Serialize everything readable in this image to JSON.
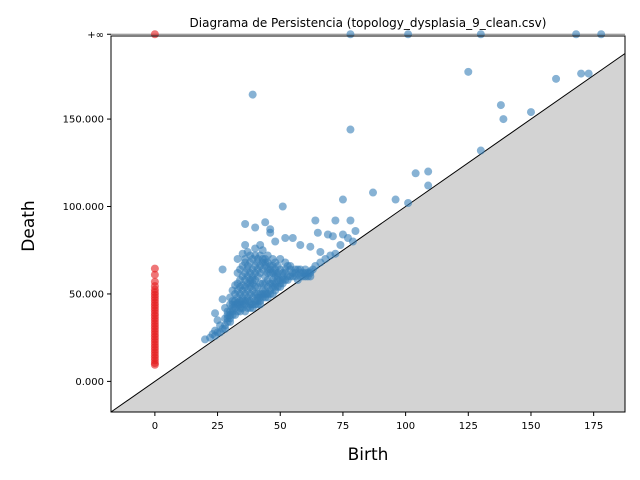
{
  "chart_data": {
    "type": "scatter",
    "title": "Diagrama de Persistencia (topology_dysplasia_9_clean.csv)",
    "xlabel": "Birth",
    "ylabel": "Death",
    "xlim": [
      -17.5,
      187.5
    ],
    "ylim": [
      -17.5,
      197.5
    ],
    "x_ticks": [
      0,
      25,
      50,
      75,
      100,
      125,
      150,
      175
    ],
    "y_ticks": [
      {
        "value": 0,
        "label": "0.000"
      },
      {
        "value": 50,
        "label": "50.000"
      },
      {
        "value": 100,
        "label": "100.000"
      },
      {
        "value": 150,
        "label": "150.000"
      },
      {
        "value": 198.5,
        "label": "+∞"
      }
    ],
    "infinity_value": 198.5,
    "diagonal": true,
    "series": [
      {
        "color": "#e41a1c",
        "points": [
          [
            0,
            198.5
          ],
          [
            0,
            64.5
          ],
          [
            0,
            61
          ],
          [
            0,
            57
          ],
          [
            0,
            54.5
          ],
          [
            0,
            52.5
          ],
          [
            0,
            51
          ],
          [
            0,
            49.5
          ],
          [
            0,
            48
          ],
          [
            0,
            46.5
          ],
          [
            0,
            45
          ],
          [
            0,
            43.5
          ],
          [
            0,
            42
          ],
          [
            0,
            40.5
          ],
          [
            0,
            39
          ],
          [
            0,
            37.5
          ],
          [
            0,
            36
          ],
          [
            0,
            34.5
          ],
          [
            0,
            33
          ],
          [
            0,
            31.5
          ],
          [
            0,
            30
          ],
          [
            0,
            28.5
          ],
          [
            0,
            27
          ],
          [
            0,
            25.5
          ],
          [
            0,
            24
          ],
          [
            0,
            22.5
          ],
          [
            0,
            21
          ],
          [
            0,
            19.5
          ],
          [
            0,
            18
          ],
          [
            0,
            16.5
          ],
          [
            0,
            15
          ],
          [
            0,
            13.5
          ],
          [
            0,
            12
          ],
          [
            0,
            10.5
          ],
          [
            0,
            9.5
          ]
        ]
      },
      {
        "color": "#377eb8",
        "points": [
          [
            78,
            198.5
          ],
          [
            101,
            198.5
          ],
          [
            130,
            198.5
          ],
          [
            168,
            198.5
          ],
          [
            178,
            198.5
          ],
          [
            39,
            164
          ],
          [
            125,
            177
          ],
          [
            160,
            173
          ],
          [
            170,
            176
          ],
          [
            173,
            176
          ],
          [
            138,
            158
          ],
          [
            139,
            150
          ],
          [
            150,
            154
          ],
          [
            78,
            144
          ],
          [
            130,
            132
          ],
          [
            109,
            120
          ],
          [
            104,
            119
          ],
          [
            109,
            112
          ],
          [
            87,
            108
          ],
          [
            96,
            104
          ],
          [
            101,
            102
          ],
          [
            75,
            104
          ],
          [
            51,
            100
          ],
          [
            64,
            92
          ],
          [
            72,
            92
          ],
          [
            78,
            92
          ],
          [
            36,
            90
          ],
          [
            44,
            91
          ],
          [
            40,
            88
          ],
          [
            46,
            87
          ],
          [
            46,
            85
          ],
          [
            65,
            85
          ],
          [
            69,
            84
          ],
          [
            71,
            83
          ],
          [
            75,
            84
          ],
          [
            77,
            82
          ],
          [
            80,
            86
          ],
          [
            79,
            80
          ],
          [
            74,
            78
          ],
          [
            52,
            82
          ],
          [
            55,
            82
          ],
          [
            58,
            78
          ],
          [
            62,
            77
          ],
          [
            48,
            80
          ],
          [
            42,
            78
          ],
          [
            36,
            78
          ],
          [
            66,
            74
          ],
          [
            70,
            72
          ],
          [
            72,
            73
          ],
          [
            27,
            64
          ],
          [
            20,
            24
          ],
          [
            22,
            25
          ],
          [
            24,
            26
          ],
          [
            24,
            39
          ],
          [
            25,
            35
          ],
          [
            26,
            32
          ],
          [
            27,
            47
          ],
          [
            28,
            42
          ],
          [
            29,
            38
          ],
          [
            30,
            48
          ],
          [
            31,
            52
          ],
          [
            32,
            55
          ],
          [
            33,
            62
          ],
          [
            33,
            70
          ],
          [
            34,
            64
          ],
          [
            35,
            73
          ],
          [
            36,
            68
          ],
          [
            37,
            74
          ],
          [
            38,
            72
          ],
          [
            40,
            76
          ],
          [
            41,
            70
          ],
          [
            43,
            75
          ],
          [
            44,
            70
          ],
          [
            45,
            72
          ],
          [
            47,
            70
          ],
          [
            48,
            68
          ],
          [
            50,
            70
          ],
          [
            52,
            68
          ],
          [
            54,
            66
          ],
          [
            56,
            64
          ],
          [
            58,
            62
          ],
          [
            60,
            64
          ],
          [
            62,
            63
          ],
          [
            64,
            66
          ],
          [
            66,
            68
          ],
          [
            68,
            70
          ],
          [
            30,
            34
          ],
          [
            31,
            40
          ],
          [
            32,
            44
          ],
          [
            33,
            48
          ],
          [
            34,
            50
          ],
          [
            35,
            55
          ],
          [
            36,
            58
          ],
          [
            37,
            60
          ],
          [
            38,
            62
          ],
          [
            39,
            64
          ],
          [
            40,
            66
          ],
          [
            41,
            60
          ],
          [
            42,
            62
          ],
          [
            43,
            64
          ],
          [
            44,
            60
          ],
          [
            45,
            62
          ],
          [
            46,
            64
          ],
          [
            47,
            58
          ],
          [
            48,
            60
          ],
          [
            49,
            62
          ],
          [
            50,
            58
          ],
          [
            51,
            60
          ],
          [
            52,
            62
          ],
          [
            53,
            58
          ],
          [
            54,
            60
          ],
          [
            55,
            62
          ],
          [
            56,
            60
          ],
          [
            57,
            58
          ],
          [
            58,
            60
          ],
          [
            59,
            62
          ],
          [
            60,
            60
          ],
          [
            61,
            62
          ],
          [
            62,
            62
          ],
          [
            63,
            64
          ],
          [
            30,
            36
          ],
          [
            31,
            38
          ],
          [
            32,
            38
          ],
          [
            33,
            40
          ],
          [
            34,
            42
          ],
          [
            35,
            44
          ],
          [
            36,
            46
          ],
          [
            37,
            48
          ],
          [
            38,
            50
          ],
          [
            39,
            52
          ],
          [
            40,
            54
          ],
          [
            41,
            54
          ],
          [
            42,
            56
          ],
          [
            43,
            56
          ],
          [
            44,
            56
          ],
          [
            45,
            58
          ],
          [
            46,
            56
          ],
          [
            47,
            56
          ],
          [
            48,
            56
          ],
          [
            49,
            58
          ],
          [
            50,
            56
          ],
          [
            51,
            56
          ],
          [
            52,
            58
          ],
          [
            53,
            60
          ],
          [
            33,
            45
          ],
          [
            34,
            46
          ],
          [
            35,
            48
          ],
          [
            36,
            50
          ],
          [
            37,
            52
          ],
          [
            38,
            54
          ],
          [
            39,
            56
          ],
          [
            40,
            58
          ],
          [
            41,
            50
          ],
          [
            42,
            50
          ],
          [
            43,
            52
          ],
          [
            44,
            52
          ],
          [
            45,
            54
          ],
          [
            46,
            52
          ],
          [
            47,
            54
          ],
          [
            48,
            54
          ],
          [
            49,
            54
          ],
          [
            50,
            54
          ],
          [
            51,
            58
          ],
          [
            34,
            40
          ],
          [
            35,
            42
          ],
          [
            36,
            44
          ],
          [
            37,
            46
          ],
          [
            38,
            46
          ],
          [
            39,
            48
          ],
          [
            40,
            50
          ],
          [
            41,
            48
          ],
          [
            42,
            48
          ],
          [
            43,
            50
          ],
          [
            44,
            48
          ],
          [
            45,
            50
          ],
          [
            46,
            50
          ],
          [
            47,
            50
          ],
          [
            48,
            52
          ],
          [
            36,
            40
          ],
          [
            37,
            42
          ],
          [
            38,
            44
          ],
          [
            39,
            44
          ],
          [
            40,
            46
          ],
          [
            41,
            46
          ],
          [
            42,
            46
          ],
          [
            43,
            48
          ],
          [
            44,
            50
          ],
          [
            45,
            48
          ],
          [
            38,
            42
          ],
          [
            39,
            42
          ],
          [
            40,
            44
          ],
          [
            41,
            44
          ],
          [
            42,
            44
          ],
          [
            35,
            66
          ],
          [
            36,
            70
          ],
          [
            37,
            66
          ],
          [
            38,
            68
          ],
          [
            39,
            70
          ],
          [
            40,
            72
          ],
          [
            41,
            68
          ],
          [
            42,
            72
          ],
          [
            43,
            70
          ],
          [
            44,
            68
          ],
          [
            45,
            68
          ],
          [
            46,
            66
          ],
          [
            47,
            66
          ],
          [
            48,
            64
          ],
          [
            49,
            66
          ],
          [
            50,
            64
          ],
          [
            51,
            62
          ],
          [
            52,
            64
          ],
          [
            53,
            66
          ],
          [
            54,
            64
          ],
          [
            55,
            60
          ],
          [
            56,
            62
          ],
          [
            57,
            64
          ],
          [
            58,
            64
          ],
          [
            59,
            60
          ],
          [
            60,
            62
          ],
          [
            61,
            60
          ],
          [
            62,
            60
          ],
          [
            33,
            56
          ],
          [
            34,
            58
          ],
          [
            35,
            60
          ],
          [
            36,
            62
          ],
          [
            37,
            64
          ],
          [
            38,
            58
          ],
          [
            39,
            60
          ],
          [
            40,
            62
          ],
          [
            41,
            64
          ],
          [
            42,
            66
          ],
          [
            43,
            68
          ],
          [
            44,
            66
          ],
          [
            45,
            64
          ],
          [
            46,
            62
          ],
          [
            47,
            62
          ],
          [
            48,
            62
          ],
          [
            49,
            60
          ],
          [
            31,
            46
          ],
          [
            32,
            50
          ],
          [
            33,
            52
          ],
          [
            34,
            54
          ],
          [
            35,
            52
          ],
          [
            36,
            54
          ],
          [
            37,
            56
          ],
          [
            38,
            56
          ],
          [
            39,
            58
          ],
          [
            29,
            34
          ],
          [
            30,
            40
          ],
          [
            31,
            44
          ],
          [
            32,
            46
          ],
          [
            33,
            44
          ],
          [
            34,
            44
          ],
          [
            35,
            46
          ],
          [
            28,
            32
          ],
          [
            29,
            36
          ],
          [
            30,
            38
          ],
          [
            31,
            42
          ],
          [
            32,
            42
          ],
          [
            28,
            36
          ],
          [
            29,
            40
          ],
          [
            30,
            44
          ],
          [
            27,
            30
          ],
          [
            28,
            30
          ],
          [
            26,
            28
          ],
          [
            25,
            28
          ],
          [
            24,
            29
          ],
          [
            23,
            27
          ]
        ]
      }
    ]
  }
}
